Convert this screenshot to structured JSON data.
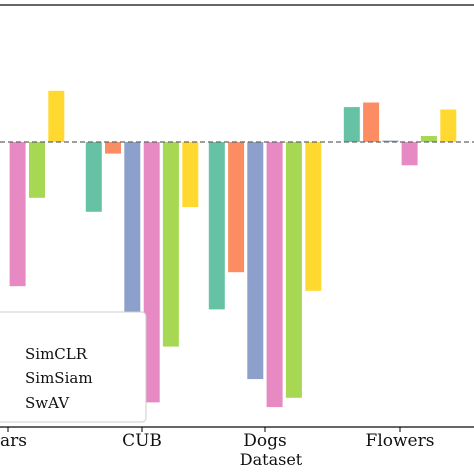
{
  "chart_data": {
    "type": "bar",
    "xlabel": "Dataset",
    "ylabel": "",
    "title": "",
    "categories": [
      "Cars",
      "CUB",
      "Dogs",
      "Flowers"
    ],
    "category_labels_visible": [
      "ars",
      "CUB",
      "Dogs",
      "Flowers"
    ],
    "baseline": 0,
    "ylim": [
      -5.6,
      2.9
    ],
    "series": [
      {
        "color": "#66c2a5",
        "values": [
          null,
          -1.5,
          -3.6,
          0.75
        ]
      },
      {
        "color": "#fc8d62",
        "values": [
          null,
          -0.25,
          -2.8,
          0.85
        ]
      },
      {
        "color": "#8da0cb",
        "values": [
          null,
          -4.5,
          -5.1,
          0.03
        ]
      },
      {
        "color": "#e78ac3",
        "values": [
          -3.1,
          -5.6,
          -5.7,
          -0.5
        ]
      },
      {
        "color": "#a6d854",
        "values": [
          -1.2,
          -4.4,
          -5.5,
          0.13
        ]
      },
      {
        "color": "#ffd92f",
        "values": [
          1.1,
          -1.4,
          -3.2,
          0.7
        ]
      }
    ],
    "legend": {
      "placement": "bottom-left",
      "entries": [
        "SimCLR",
        "SimSiam",
        "SwAV"
      ]
    },
    "reference_line": {
      "y": 0,
      "style": "dashed"
    }
  }
}
